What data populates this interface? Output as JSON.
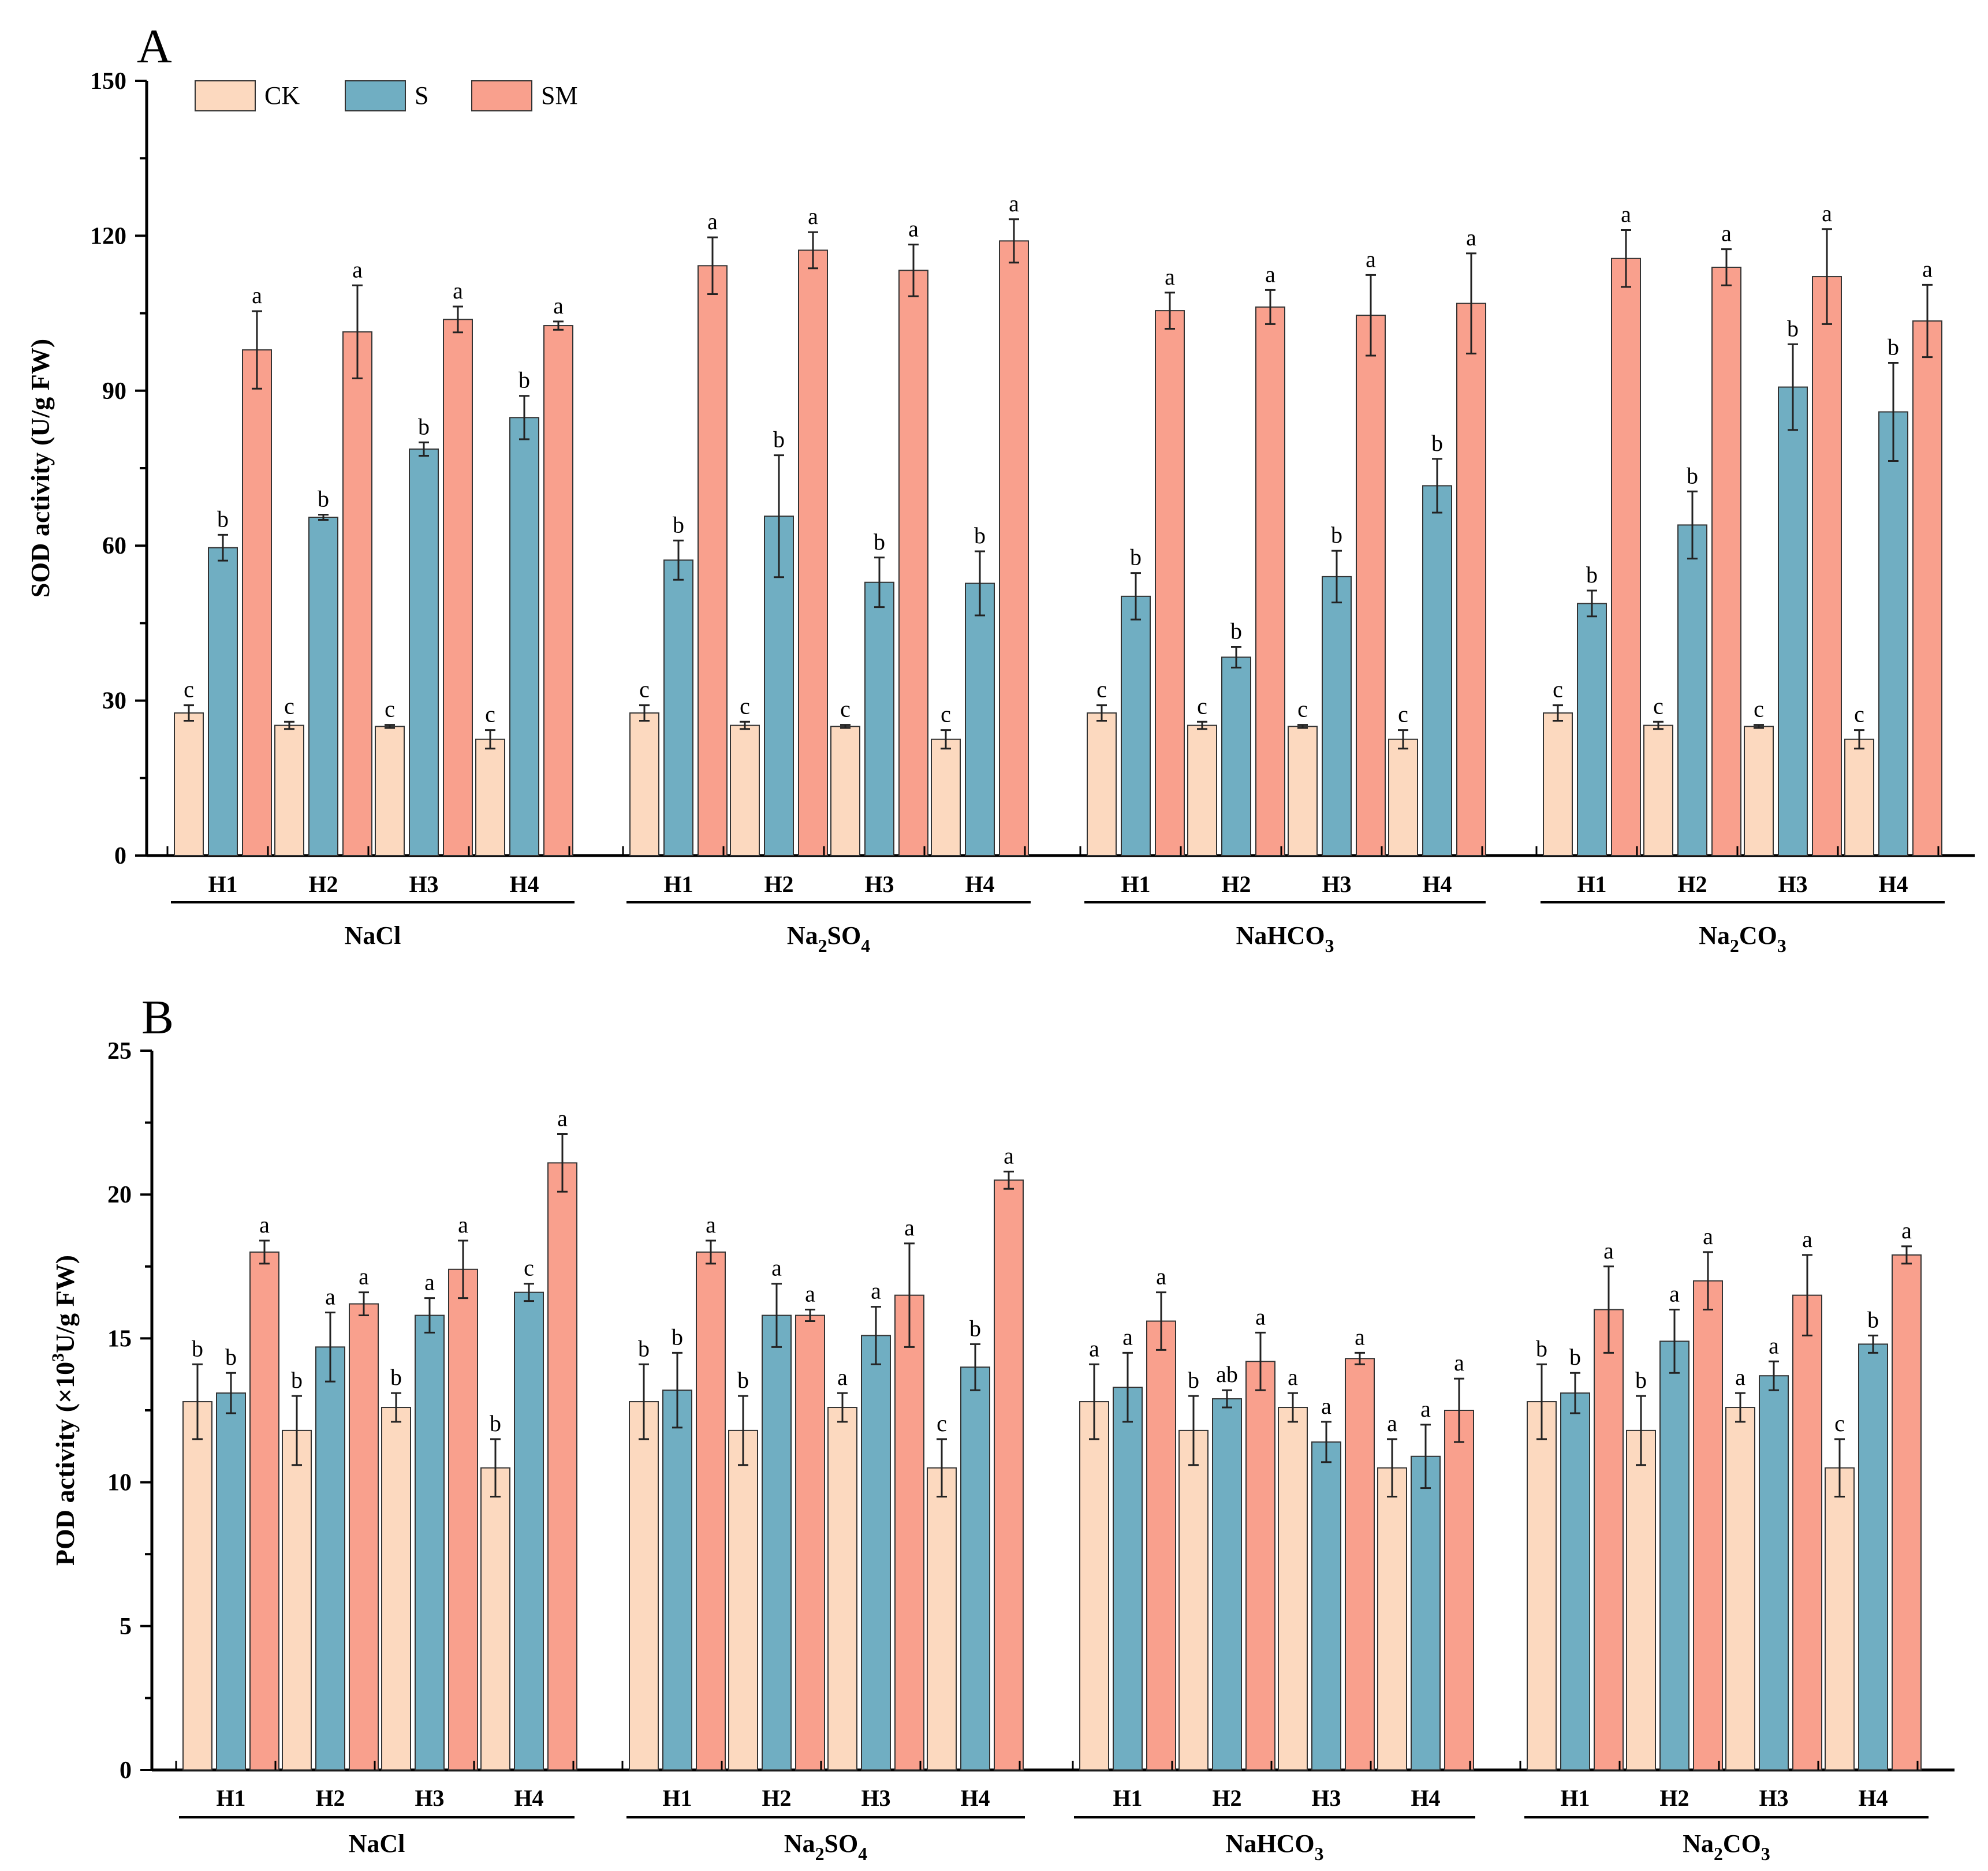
{
  "colors": {
    "CK": "#fcd9bf",
    "S": "#70aec2",
    "SM": "#f9a08d",
    "axis": "#000000"
  },
  "legend": [
    {
      "key": "CK",
      "label": "CK"
    },
    {
      "key": "S",
      "label": "S"
    },
    {
      "key": "SM",
      "label": "SM"
    }
  ],
  "chart_data": [
    {
      "type": "bar",
      "panel": "A",
      "ylabel": "SOD activity (U/g FW)",
      "ylim": [
        0,
        150
      ],
      "yticks": [
        0,
        30,
        60,
        90,
        120,
        150
      ],
      "groups": [
        {
          "salt": "NaCl",
          "categories": [
            {
              "name": "H1",
              "CK": 27.6,
              "S": 59.6,
              "SM": 97.9,
              "CK_err": 1.5,
              "S_err": 2.5,
              "SM_err": 7.5,
              "CK_sig": "c",
              "S_sig": "b",
              "SM_sig": "a"
            },
            {
              "name": "H2",
              "CK": 25.2,
              "S": 65.5,
              "SM": 101.4,
              "CK_err": 0.7,
              "S_err": 0.5,
              "SM_err": 9.0,
              "CK_sig": "c",
              "S_sig": "b",
              "SM_sig": "a"
            },
            {
              "name": "H3",
              "CK": 25.0,
              "S": 78.7,
              "SM": 103.8,
              "CK_err": 0.3,
              "S_err": 1.3,
              "SM_err": 2.5,
              "CK_sig": "c",
              "S_sig": "b",
              "SM_sig": "a"
            },
            {
              "name": "H4",
              "CK": 22.5,
              "S": 84.8,
              "SM": 102.6,
              "CK_err": 1.8,
              "S_err": 4.2,
              "SM_err": 0.8,
              "CK_sig": "c",
              "S_sig": "b",
              "SM_sig": "a"
            }
          ]
        },
        {
          "salt": "Na2SO4",
          "categories": [
            {
              "name": "H1",
              "CK": 27.6,
              "S": 57.2,
              "SM": 114.2,
              "CK_err": 1.5,
              "S_err": 3.8,
              "SM_err": 5.5,
              "CK_sig": "c",
              "S_sig": "b",
              "SM_sig": "a"
            },
            {
              "name": "H2",
              "CK": 25.2,
              "S": 65.7,
              "SM": 117.2,
              "CK_err": 0.7,
              "S_err": 11.8,
              "SM_err": 3.5,
              "CK_sig": "c",
              "S_sig": "b",
              "SM_sig": "a"
            },
            {
              "name": "H3",
              "CK": 25.0,
              "S": 52.9,
              "SM": 113.3,
              "CK_err": 0.3,
              "S_err": 4.8,
              "SM_err": 5.0,
              "CK_sig": "c",
              "S_sig": "b",
              "SM_sig": "a"
            },
            {
              "name": "H4",
              "CK": 22.5,
              "S": 52.7,
              "SM": 119.0,
              "CK_err": 1.8,
              "S_err": 6.2,
              "SM_err": 4.2,
              "CK_sig": "c",
              "S_sig": "b",
              "SM_sig": "a"
            }
          ]
        },
        {
          "salt": "NaHCO3",
          "categories": [
            {
              "name": "H1",
              "CK": 27.6,
              "S": 50.2,
              "SM": 105.5,
              "CK_err": 1.5,
              "S_err": 4.5,
              "SM_err": 3.5,
              "CK_sig": "c",
              "S_sig": "b",
              "SM_sig": "a"
            },
            {
              "name": "H2",
              "CK": 25.2,
              "S": 38.4,
              "SM": 106.2,
              "CK_err": 0.7,
              "S_err": 2.0,
              "SM_err": 3.3,
              "CK_sig": "c",
              "S_sig": "b",
              "SM_sig": "a"
            },
            {
              "name": "H3",
              "CK": 25.0,
              "S": 54.0,
              "SM": 104.6,
              "CK_err": 0.3,
              "S_err": 5.0,
              "SM_err": 7.8,
              "CK_sig": "c",
              "S_sig": "b",
              "SM_sig": "a"
            },
            {
              "name": "H4",
              "CK": 22.5,
              "S": 71.6,
              "SM": 106.9,
              "CK_err": 1.8,
              "S_err": 5.2,
              "SM_err": 9.7,
              "CK_sig": "c",
              "S_sig": "b",
              "SM_sig": "a"
            }
          ]
        },
        {
          "salt": "Na2CO3",
          "categories": [
            {
              "name": "H1",
              "CK": 27.6,
              "S": 48.8,
              "SM": 115.6,
              "CK_err": 1.5,
              "S_err": 2.5,
              "SM_err": 5.5,
              "CK_sig": "c",
              "S_sig": "b",
              "SM_sig": "a"
            },
            {
              "name": "H2",
              "CK": 25.2,
              "S": 64.0,
              "SM": 113.9,
              "CK_err": 0.7,
              "S_err": 6.5,
              "SM_err": 3.5,
              "CK_sig": "c",
              "S_sig": "b",
              "SM_sig": "a"
            },
            {
              "name": "H3",
              "CK": 25.0,
              "S": 90.7,
              "SM": 112.1,
              "CK_err": 0.3,
              "S_err": 8.3,
              "SM_err": 9.2,
              "CK_sig": "c",
              "S_sig": "b",
              "SM_sig": "a"
            },
            {
              "name": "H4",
              "CK": 22.5,
              "S": 85.9,
              "SM": 103.5,
              "CK_err": 1.8,
              "S_err": 9.5,
              "SM_err": 7.0,
              "CK_sig": "c",
              "S_sig": "b",
              "SM_sig": "a"
            }
          ]
        }
      ]
    },
    {
      "type": "bar",
      "panel": "B",
      "ylabel": "POD activity (×10³U/g FW)",
      "ylim": [
        0,
        25
      ],
      "yticks": [
        0,
        5,
        10,
        15,
        20,
        25
      ],
      "groups": [
        {
          "salt": "NaCl",
          "categories": [
            {
              "name": "H1",
              "CK": 12.8,
              "S": 13.1,
              "SM": 18.0,
              "CK_err": 1.3,
              "S_err": 0.7,
              "SM_err": 0.4,
              "CK_sig": "b",
              "S_sig": "b",
              "SM_sig": "a"
            },
            {
              "name": "H2",
              "CK": 11.8,
              "S": 14.7,
              "SM": 16.2,
              "CK_err": 1.2,
              "S_err": 1.2,
              "SM_err": 0.4,
              "CK_sig": "b",
              "S_sig": "a",
              "SM_sig": "a"
            },
            {
              "name": "H3",
              "CK": 12.6,
              "S": 15.8,
              "SM": 17.4,
              "CK_err": 0.5,
              "S_err": 0.6,
              "SM_err": 1.0,
              "CK_sig": "b",
              "S_sig": "a",
              "SM_sig": "a"
            },
            {
              "name": "H4",
              "CK": 10.5,
              "S": 16.6,
              "SM": 21.1,
              "CK_err": 1.0,
              "S_err": 0.3,
              "SM_err": 1.0,
              "CK_sig": "b",
              "S_sig": "c",
              "SM_sig": "a"
            }
          ]
        },
        {
          "salt": "Na2SO4",
          "categories": [
            {
              "name": "H1",
              "CK": 12.8,
              "S": 13.2,
              "SM": 18.0,
              "CK_err": 1.3,
              "S_err": 1.3,
              "SM_err": 0.4,
              "CK_sig": "b",
              "S_sig": "b",
              "SM_sig": "a"
            },
            {
              "name": "H2",
              "CK": 11.8,
              "S": 15.8,
              "SM": 15.8,
              "CK_err": 1.2,
              "S_err": 1.1,
              "SM_err": 0.2,
              "CK_sig": "b",
              "S_sig": "a",
              "SM_sig": "a"
            },
            {
              "name": "H3",
              "CK": 12.6,
              "S": 15.1,
              "SM": 16.5,
              "CK_err": 0.5,
              "S_err": 1.0,
              "SM_err": 1.8,
              "CK_sig": "a",
              "S_sig": "a",
              "SM_sig": "a"
            },
            {
              "name": "H4",
              "CK": 10.5,
              "S": 14.0,
              "SM": 20.5,
              "CK_err": 1.0,
              "S_err": 0.8,
              "SM_err": 0.3,
              "CK_sig": "c",
              "S_sig": "b",
              "SM_sig": "a"
            }
          ]
        },
        {
          "salt": "NaHCO3",
          "categories": [
            {
              "name": "H1",
              "CK": 12.8,
              "S": 13.3,
              "SM": 15.6,
              "CK_err": 1.3,
              "S_err": 1.2,
              "SM_err": 1.0,
              "CK_sig": "a",
              "S_sig": "a",
              "SM_sig": "a"
            },
            {
              "name": "H2",
              "CK": 11.8,
              "S": 12.9,
              "SM": 14.2,
              "CK_err": 1.2,
              "S_err": 0.3,
              "SM_err": 1.0,
              "CK_sig": "b",
              "S_sig": "ab",
              "SM_sig": "a"
            },
            {
              "name": "H3",
              "CK": 12.6,
              "S": 11.4,
              "SM": 14.3,
              "CK_err": 0.5,
              "S_err": 0.7,
              "SM_err": 0.2,
              "CK_sig": "a",
              "S_sig": "a",
              "SM_sig": "a"
            },
            {
              "name": "H4",
              "CK": 10.5,
              "S": 10.9,
              "SM": 12.5,
              "CK_err": 1.0,
              "S_err": 1.1,
              "SM_err": 1.1,
              "CK_sig": "a",
              "S_sig": "a",
              "SM_sig": "a"
            }
          ]
        },
        {
          "salt": "Na2CO3",
          "categories": [
            {
              "name": "H1",
              "CK": 12.8,
              "S": 13.1,
              "SM": 16.0,
              "CK_err": 1.3,
              "S_err": 0.7,
              "SM_err": 1.5,
              "CK_sig": "b",
              "S_sig": "b",
              "SM_sig": "a"
            },
            {
              "name": "H2",
              "CK": 11.8,
              "S": 14.9,
              "SM": 17.0,
              "CK_err": 1.2,
              "S_err": 1.1,
              "SM_err": 1.0,
              "CK_sig": "b",
              "S_sig": "a",
              "SM_sig": "a"
            },
            {
              "name": "H3",
              "CK": 12.6,
              "S": 13.7,
              "SM": 16.5,
              "CK_err": 0.5,
              "S_err": 0.5,
              "SM_err": 1.4,
              "CK_sig": "a",
              "S_sig": "a",
              "SM_sig": "a"
            },
            {
              "name": "H4",
              "CK": 10.5,
              "S": 14.8,
              "SM": 17.9,
              "CK_err": 1.0,
              "S_err": 0.3,
              "SM_err": 0.3,
              "CK_sig": "c",
              "S_sig": "b",
              "SM_sig": "a"
            }
          ]
        }
      ]
    }
  ]
}
